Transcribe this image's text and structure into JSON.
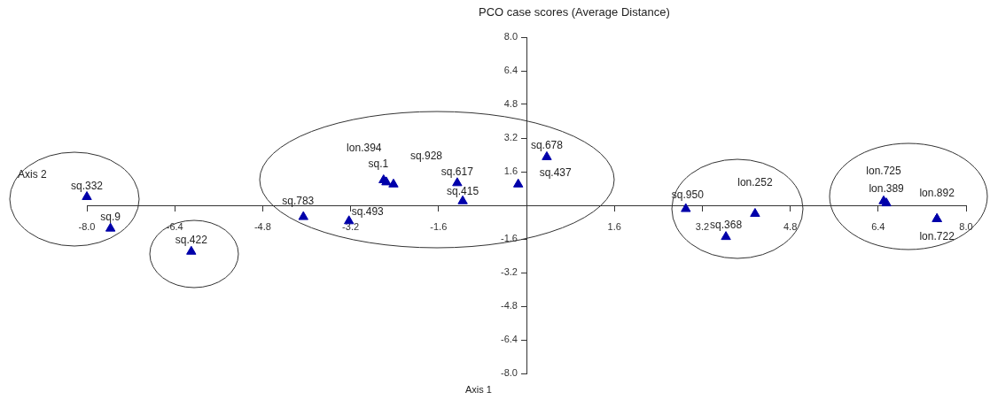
{
  "chart_data": {
    "type": "scatter",
    "title": "PCO case scores (Average Distance)",
    "xlabel": "Axis 1",
    "ylabel": "Axis 2",
    "x": [
      -8.0,
      -7.57,
      -6.1,
      -4.06,
      -3.23,
      -2.6,
      -2.55,
      -2.42,
      -1.26,
      -1.16,
      -0.15,
      0.37,
      2.9,
      4.16,
      3.63,
      6.5,
      6.55,
      7.47,
      7.47
    ],
    "values": [
      0.4,
      -1.1,
      -2.2,
      -0.55,
      -0.75,
      1.2,
      1.1,
      1.0,
      1.06,
      0.2,
      1.0,
      2.3,
      -0.17,
      -0.4,
      -1.5,
      0.2,
      0.1,
      -0.65,
      -0.65
    ],
    "color": "#0000aa",
    "marker": "triangle",
    "grid": false,
    "legend": false,
    "xlim": [
      -8,
      8
    ],
    "ylim": [
      -8,
      8
    ],
    "xticks": [
      {
        "value": -8,
        "label": "-8.0"
      },
      {
        "value": -6.4,
        "label": "-6.4"
      },
      {
        "value": -4.8,
        "label": "-4.8"
      },
      {
        "value": -3.2,
        "label": "-3.2"
      },
      {
        "value": -1.6,
        "label": "-1.6"
      },
      {
        "value": 0,
        "label": null
      },
      {
        "value": 1.6,
        "label": "1.6"
      },
      {
        "value": 3.2,
        "label": "3.2"
      },
      {
        "value": 4.8,
        "label": "4.8"
      },
      {
        "value": 6.4,
        "label": "6.4"
      },
      {
        "value": 8,
        "label": "8.0"
      }
    ],
    "yticks": [
      {
        "value": -8,
        "label": "-8.0"
      },
      {
        "value": -6.4,
        "label": "-6.4"
      },
      {
        "value": -4.8,
        "label": "-4.8"
      },
      {
        "value": -3.2,
        "label": "-3.2"
      },
      {
        "value": -1.6,
        "label": "-1.6"
      },
      {
        "value": 0,
        "label": null
      },
      {
        "value": 1.6,
        "label": "1.6"
      },
      {
        "value": 3.2,
        "label": "3.2"
      },
      {
        "value": 4.8,
        "label": "4.8"
      },
      {
        "value": 6.4,
        "label": "6.4"
      },
      {
        "value": 8,
        "label": "8.0"
      }
    ],
    "annotations": [
      {
        "text": "sq.332",
        "x": -8.0,
        "y": 0.4
      },
      {
        "text": "sq.9",
        "x": -7.57,
        "y": -1.1
      },
      {
        "text": "sq.422",
        "x": -6.1,
        "y": -2.2
      },
      {
        "text": "sq.783",
        "x": -4.06,
        "y": -0.55
      },
      {
        "text": "sq.493",
        "x": -3.23,
        "y": -0.75
      },
      {
        "text": "lon.394",
        "x": -2.6,
        "y": 1.2
      },
      {
        "text": "sq.1",
        "x": -2.55,
        "y": 1.1
      },
      {
        "text": "sq.928",
        "x": -2.42,
        "y": 1.0
      },
      {
        "text": "sq.617",
        "x": -1.26,
        "y": 1.06
      },
      {
        "text": "sq.415",
        "x": -1.16,
        "y": 0.2
      },
      {
        "text": "sq.437",
        "x": -0.15,
        "y": 1.0
      },
      {
        "text": "sq.678",
        "x": 0.37,
        "y": 2.3
      },
      {
        "text": "sq.950",
        "x": 2.9,
        "y": -0.17
      },
      {
        "text": "lon.252",
        "x": 4.16,
        "y": -0.4
      },
      {
        "text": "sq.368",
        "x": 3.63,
        "y": -1.5
      },
      {
        "text": "lon.725",
        "x": 6.5,
        "y": 0.2
      },
      {
        "text": "lon.389",
        "x": 6.55,
        "y": 0.1
      },
      {
        "text": "lon.892",
        "x": 7.47,
        "y": -0.65
      },
      {
        "text": "lon.722",
        "x": 7.47,
        "y": -0.65
      }
    ]
  }
}
